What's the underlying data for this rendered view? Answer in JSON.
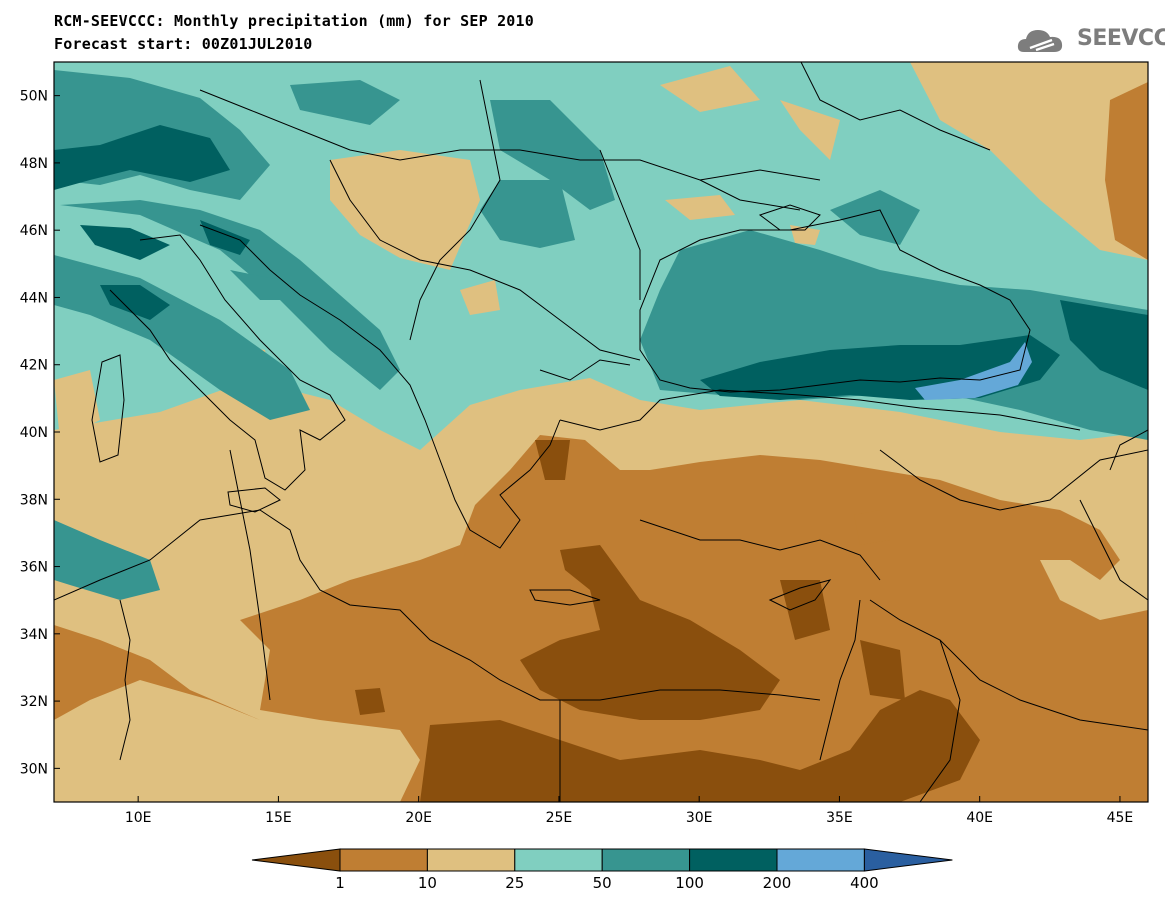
{
  "header": {
    "title": "RCM-SEEVCCC: Monthly precipitation (mm) for SEP 2010",
    "subtitle": "Forecast start: 00Z01JUL2010"
  },
  "logo": {
    "text": "SEEVCCC",
    "icon": "cloud-icon"
  },
  "map": {
    "lon_ticks": [
      "10E",
      "15E",
      "20E",
      "25E",
      "30E",
      "35E",
      "40E",
      "45E"
    ],
    "lat_ticks": [
      "50N",
      "48N",
      "46N",
      "44N",
      "42N",
      "40N",
      "38N",
      "36N",
      "34N",
      "32N",
      "30N"
    ],
    "lon_range": [
      7,
      46
    ],
    "lat_range": [
      29,
      51
    ]
  },
  "colorbar": {
    "labels": [
      "1",
      "10",
      "25",
      "50",
      "100",
      "200",
      "400"
    ],
    "colors": {
      "lt1": "#8a4f0d",
      "1-10": "#bf7e33",
      "10-25": "#dfc080",
      "25-50": "#80cfc0",
      "50-100": "#379590",
      "100-200": "#006060",
      "200-400": "#64a8d8",
      "gt400": "#2a5fa0"
    }
  }
}
